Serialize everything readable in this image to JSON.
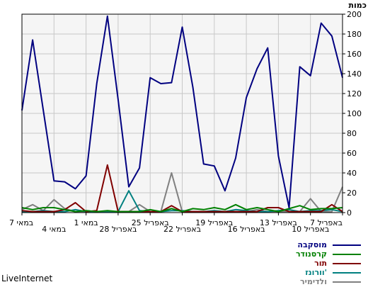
{
  "chart_data": {
    "type": "line",
    "ylabel": "כמות",
    "ylim": [
      0,
      200
    ],
    "yticks": [
      0,
      20,
      40,
      60,
      80,
      100,
      120,
      140,
      160,
      180,
      200
    ],
    "x_tick_labels": [
      "7 במאי",
      "4 במאי",
      "1 במאי",
      "28 באפריל",
      "25 באפריל",
      "22 באפריל",
      "19 באפריל",
      "16 באפריל",
      "13 באפריל",
      "10 באפריל",
      "7 באפריל"
    ],
    "grid": true,
    "legend_position": "bottom-right",
    "series": [
      {
        "name": "מוסקבה",
        "color": "#000080",
        "values": [
          103,
          174,
          103,
          32,
          31,
          24,
          37,
          130,
          198,
          114,
          26,
          45,
          136,
          130,
          131,
          187,
          126,
          49,
          47,
          22,
          55,
          116,
          145,
          166,
          57,
          5,
          147,
          138,
          191,
          178,
          136
        ]
      },
      {
        "name": "קרסנודר",
        "color": "#008000",
        "values": [
          5,
          3,
          5,
          5,
          3,
          1,
          2,
          1,
          2,
          1,
          1,
          1,
          3,
          1,
          4,
          1,
          4,
          3,
          5,
          3,
          8,
          3,
          5,
          3,
          1,
          4,
          7,
          3,
          4,
          4,
          5
        ]
      },
      {
        "name": "תור",
        "color": "#800000",
        "values": [
          2,
          1,
          1,
          1,
          3,
          10,
          1,
          2,
          48,
          1,
          1,
          1,
          1,
          1,
          7,
          1,
          1,
          1,
          1,
          1,
          1,
          1,
          1,
          5,
          5,
          1,
          1,
          1,
          1,
          8,
          1
        ]
      },
      {
        "name": "וורונז'",
        "color": "#008080",
        "values": [
          1,
          1,
          2,
          1,
          1,
          3,
          1,
          1,
          1,
          1,
          22,
          2,
          1,
          1,
          2,
          2,
          1,
          1,
          2,
          1,
          3,
          2,
          1,
          1,
          2,
          3,
          1,
          2,
          2,
          3,
          1
        ]
      },
      {
        "name": "ולדימיר",
        "color": "#808080",
        "values": [
          3,
          8,
          2,
          13,
          4,
          1,
          1,
          1,
          1,
          1,
          1,
          8,
          1,
          1,
          40,
          1,
          1,
          1,
          1,
          1,
          1,
          1,
          3,
          1,
          1,
          1,
          1,
          14,
          1,
          1,
          26
        ]
      }
    ]
  },
  "footer": {
    "brand": "LiveInternet"
  }
}
